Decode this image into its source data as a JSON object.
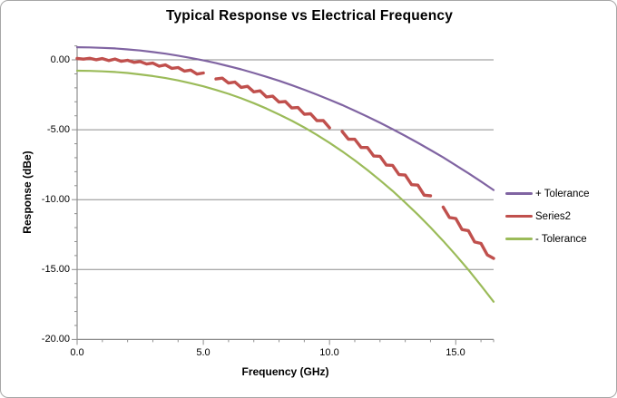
{
  "title": "Typical Response vs Electrical Frequency",
  "axes": {
    "x": {
      "label": "Frequency (GHz)",
      "min": 0,
      "max": 16.5,
      "minor_unit": 1.0,
      "major_ticks": [
        0,
        5,
        10,
        15
      ],
      "tick_labels": [
        "0.0",
        "5.0",
        "10.0",
        "15.0"
      ]
    },
    "y": {
      "label": "Response (dBe)",
      "min": -20,
      "max": 1.0,
      "minor_unit": 1.0,
      "major_ticks": [
        0,
        -5,
        -10,
        -15,
        -20
      ],
      "tick_labels": [
        "0.00",
        "-5.00",
        "-10.00",
        "-15.00",
        "-20.00"
      ]
    }
  },
  "colors": {
    "plus_tolerance": "#8064A2",
    "series2": "#C0504D",
    "minus_tolerance": "#9BBB59",
    "grid": "#8E8E8E",
    "axis": "#8E8E8E",
    "border": "#A6A6A6",
    "text": "#000000"
  },
  "legend": {
    "position": "right",
    "items": [
      {
        "label": "+ Tolerance"
      },
      {
        "label": "Series2"
      },
      {
        "label": "- Tolerance"
      }
    ]
  },
  "chart_data": {
    "type": "line",
    "title": "Typical Response vs Electrical Frequency",
    "xlabel": "Frequency (GHz)",
    "ylabel": "Response (dBe)",
    "xlim": [
      0,
      16.5
    ],
    "ylim": [
      -20,
      1
    ],
    "grid": "horizontal-major",
    "legend_position": "right",
    "series": [
      {
        "name": "+ Tolerance",
        "color": "#8064A2",
        "width": 2.2,
        "x": [
          0,
          0.5,
          1,
          1.5,
          2,
          2.5,
          3,
          3.5,
          4,
          4.5,
          5,
          5.5,
          6,
          6.5,
          7,
          7.5,
          8,
          8.5,
          9,
          9.5,
          10,
          10.5,
          11,
          11.5,
          12,
          12.5,
          13,
          13.5,
          14,
          14.5,
          15,
          15.5,
          16,
          16.5
        ],
        "y": [
          0.9,
          0.89,
          0.86,
          0.82,
          0.75,
          0.67,
          0.56,
          0.44,
          0.3,
          0.14,
          -0.04,
          -0.23,
          -0.45,
          -0.68,
          -0.94,
          -1.21,
          -1.5,
          -1.81,
          -2.14,
          -2.49,
          -2.85,
          -3.23,
          -3.64,
          -4.06,
          -4.5,
          -4.96,
          -5.44,
          -5.93,
          -6.45,
          -6.98,
          -7.54,
          -8.11,
          -8.7,
          -9.31
        ]
      },
      {
        "name": "Series2",
        "color": "#C0504D",
        "width": 3.4,
        "x": [
          0,
          0.25,
          0.5,
          0.75,
          1,
          1.25,
          1.5,
          1.75,
          2,
          2.25,
          2.5,
          2.75,
          3,
          3.25,
          3.5,
          3.75,
          4,
          4.25,
          4.5,
          4.75,
          5,
          5.25,
          5.5,
          5.75,
          6,
          6.25,
          6.5,
          6.75,
          7,
          7.25,
          7.5,
          7.75,
          8,
          8.25,
          8.5,
          8.75,
          9,
          9.25,
          9.5,
          9.75,
          10,
          10.25,
          10.5,
          10.75,
          11,
          11.25,
          11.5,
          11.75,
          12,
          12.25,
          12.5,
          12.75,
          13,
          13.25,
          13.5,
          13.75,
          14,
          14.25,
          14.5,
          14.75,
          15,
          15.25,
          15.5,
          15.75,
          16,
          16.25,
          16.5
        ],
        "y": [
          0.1,
          0.05,
          0.11,
          0.01,
          0.09,
          -0.05,
          0.06,
          -0.1,
          -0.03,
          -0.18,
          -0.12,
          -0.3,
          -0.23,
          -0.45,
          -0.36,
          -0.61,
          -0.55,
          -0.8,
          -0.73,
          -1.02,
          -0.94,
          null,
          -1.37,
          -1.31,
          -1.66,
          -1.59,
          -1.97,
          -1.89,
          -2.29,
          -2.22,
          -2.65,
          -2.6,
          -3.02,
          -2.98,
          -3.44,
          -3.41,
          -3.89,
          -3.86,
          -4.35,
          -4.34,
          -4.86,
          null,
          -5.12,
          -5.68,
          -5.68,
          -6.27,
          -6.27,
          -6.88,
          -6.9,
          -7.53,
          -7.55,
          -8.21,
          -8.24,
          -8.93,
          -8.96,
          -9.68,
          -9.73,
          null,
          -10.53,
          -11.28,
          -11.35,
          -12.14,
          -12.22,
          -13.03,
          -13.13,
          -13.95,
          -14.2
        ]
      },
      {
        "name": "- Tolerance",
        "color": "#9BBB59",
        "width": 2.2,
        "x": [
          0,
          0.5,
          1,
          1.5,
          2,
          2.5,
          3,
          3.5,
          4,
          4.5,
          5,
          5.5,
          6,
          6.5,
          7,
          7.5,
          8,
          8.5,
          9,
          9.5,
          10,
          10.5,
          11,
          11.5,
          12,
          12.5,
          13,
          13.5,
          14,
          14.5,
          15,
          15.5,
          16,
          16.5
        ],
        "y": [
          -0.78,
          -0.79,
          -0.82,
          -0.87,
          -0.94,
          -1.04,
          -1.16,
          -1.3,
          -1.47,
          -1.67,
          -1.89,
          -2.15,
          -2.43,
          -2.75,
          -3.1,
          -3.48,
          -3.9,
          -4.35,
          -4.84,
          -5.37,
          -5.94,
          -6.54,
          -7.19,
          -7.88,
          -8.61,
          -9.38,
          -10.21,
          -11.07,
          -11.99,
          -12.95,
          -13.96,
          -15.02,
          -16.14,
          -17.3
        ]
      }
    ]
  }
}
